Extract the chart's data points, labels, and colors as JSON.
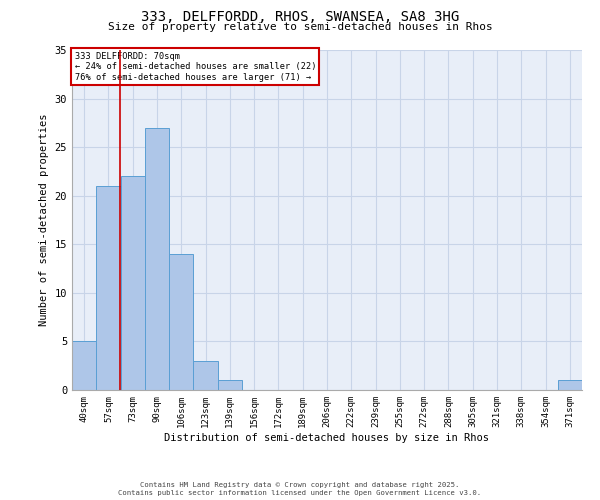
{
  "title": "333, DELFFORDD, RHOS, SWANSEA, SA8 3HG",
  "subtitle": "Size of property relative to semi-detached houses in Rhos",
  "xlabel": "Distribution of semi-detached houses by size in Rhos",
  "ylabel": "Number of semi-detached properties",
  "bins": [
    "40sqm",
    "57sqm",
    "73sqm",
    "90sqm",
    "106sqm",
    "123sqm",
    "139sqm",
    "156sqm",
    "172sqm",
    "189sqm",
    "206sqm",
    "222sqm",
    "239sqm",
    "255sqm",
    "272sqm",
    "288sqm",
    "305sqm",
    "321sqm",
    "338sqm",
    "354sqm",
    "371sqm"
  ],
  "values": [
    5,
    21,
    22,
    27,
    14,
    3,
    1,
    0,
    0,
    0,
    0,
    0,
    0,
    0,
    0,
    0,
    0,
    0,
    0,
    0,
    1
  ],
  "bar_color": "#aec6e8",
  "bar_edge_color": "#5a9fd4",
  "grid_color": "#c8d4e8",
  "red_line_x": 1.47,
  "annotation_title": "333 DELFFORDD: 70sqm",
  "annotation_line1": "← 24% of semi-detached houses are smaller (22)",
  "annotation_line2": "76% of semi-detached houses are larger (71) →",
  "annotation_box_color": "#cc0000",
  "footer_line1": "Contains HM Land Registry data © Crown copyright and database right 2025.",
  "footer_line2": "Contains public sector information licensed under the Open Government Licence v3.0.",
  "ylim": [
    0,
    35
  ],
  "yticks": [
    0,
    5,
    10,
    15,
    20,
    25,
    30,
    35
  ],
  "background_color": "#e8eef8"
}
